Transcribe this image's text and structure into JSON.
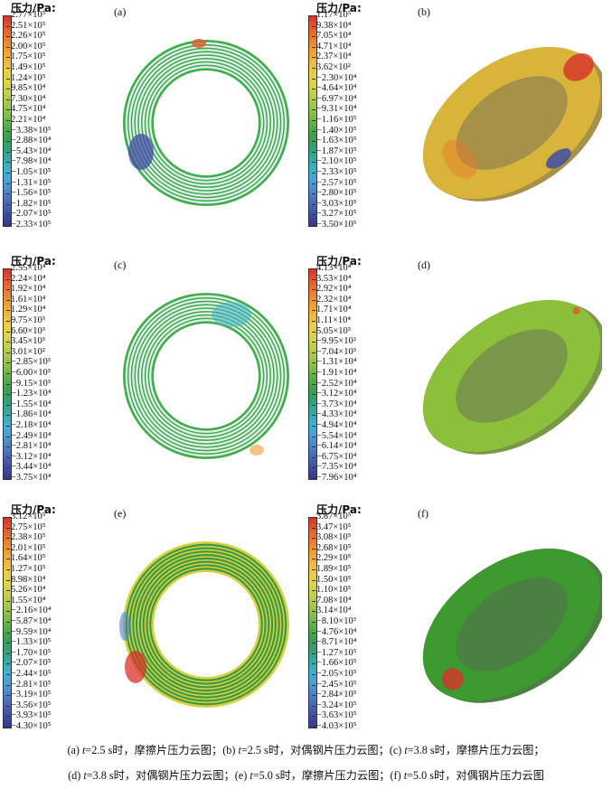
{
  "legend_title": "压力/Pa:",
  "panels": [
    {
      "label": "(a)",
      "view": "flat",
      "ring_color": "#3fae4b",
      "stripe": "#e6eef4",
      "ticks": [
        "2.77×10⁵",
        "2.51×10⁵",
        "2.26×10⁵",
        "2.00×10⁵",
        "1.75×10⁵",
        "1.49×10⁵",
        "1.24×10⁵",
        "9.85×10⁴",
        "7.30×10⁴",
        "4.75×10⁴",
        "2.21×10⁴",
        "−3.38×10³",
        "−2.88×10⁴",
        "−5.43×10⁴",
        "−7.98×10⁴",
        "−1.05×10⁵",
        "−1.31×10⁵",
        "−1.56×10⁵",
        "−1.82×10⁵",
        "−2.07×10⁵",
        "−2.33×10⁵"
      ]
    },
    {
      "label": "(b)",
      "view": "tilted",
      "ring_color": "#d8b43a",
      "stripe": "none",
      "ticks": [
        "1.17×10⁵",
        "9.38×10⁴",
        "7.05×10⁴",
        "4.71×10⁴",
        "2.37×10⁴",
        "3.62×10²",
        "−2.30×10⁴",
        "−4.64×10⁴",
        "−6.97×10⁴",
        "−9.31×10⁴",
        "−1.16×10⁵",
        "−1.40×10⁵",
        "−1.63×10⁵",
        "−1.87×10⁵",
        "−2.10×10⁵",
        "−2.33×10⁵",
        "−2.57×10⁵",
        "−2.80×10⁵",
        "−3.03×10⁵",
        "−3.27×10⁵",
        "−3.50×10⁵"
      ]
    },
    {
      "label": "(c)",
      "view": "flat",
      "ring_color": "#3fae4b",
      "stripe": "#e8eef0",
      "ticks": [
        "2.55×10⁴",
        "2.24×10⁴",
        "1.92×10⁴",
        "1.61×10⁴",
        "1.29×10⁴",
        "9.75×10³",
        "6.60×10³",
        "3.45×10³",
        "3.01×10²",
        "−2.85×10³",
        "−6.00×10³",
        "−9.15×10³",
        "−1.23×10⁴",
        "−1.55×10⁴",
        "−1.86×10⁴",
        "−2.18×10⁴",
        "−2.49×10⁴",
        "−2.81×10⁴",
        "−3.12×10⁴",
        "−3.44×10⁴",
        "−3.75×10⁴"
      ]
    },
    {
      "label": "(d)",
      "view": "tilted",
      "ring_color": "#8cbf3a",
      "stripe": "none",
      "ticks": [
        "4.13×10⁴",
        "3.53×10⁴",
        "2.92×10⁴",
        "2.32×10⁴",
        "1.71×10⁴",
        "1.11×10⁴",
        "5.05×10³",
        "−9.95×10²",
        "−7.04×10³",
        "−1.31×10⁴",
        "−1.91×10⁴",
        "−2.52×10⁴",
        "−3.12×10⁴",
        "−3.73×10⁴",
        "−4.33×10⁴",
        "−4.94×10⁴",
        "−5.54×10⁴",
        "−6.14×10⁴",
        "−6.75×10⁴",
        "−7.35×10⁴",
        "−7.96×10⁴"
      ]
    },
    {
      "label": "(e)",
      "view": "flat",
      "ring_color": "#d9d040",
      "stripe": "#3a9a46",
      "ticks": [
        "3.12×10⁵",
        "2.75×10⁵",
        "2.38×10⁵",
        "2.01×10⁵",
        "1.64×10⁵",
        "1.27×10⁵",
        "8.98×10⁴",
        "5.26×10⁴",
        "1.55×10⁴",
        "−2.16×10⁴",
        "−5.87×10⁴",
        "−9.59×10⁴",
        "−1.33×10⁵",
        "−1.70×10⁵",
        "−2.07×10⁵",
        "−2.44×10⁵",
        "−2.81×10⁵",
        "−3.19×10⁵",
        "−3.56×10⁵",
        "−3.93×10⁵",
        "−4.30×10⁵"
      ]
    },
    {
      "label": "(f)",
      "view": "tilted",
      "ring_color": "#3c9a2e",
      "stripe": "none",
      "ticks": [
        "3.87×10⁵",
        "3.47×10⁵",
        "3.08×10⁵",
        "2.68×10⁵",
        "2.29×10⁵",
        "1.89×10⁵",
        "1.50×10⁵",
        "1.10×10⁵",
        "7.08×10⁴",
        "3.14×10⁴",
        "−8.10×10³",
        "−4.76×10⁴",
        "−8.71×10⁴",
        "−1.27×10⁵",
        "−1.66×10⁵",
        "−2.05×10⁵",
        "−2.45×10⁵",
        "−2.84×10⁵",
        "−3.24×10⁵",
        "−3.63×10⁵",
        "−4.03×10⁵"
      ]
    }
  ],
  "caption": {
    "line1": [
      {
        "pre": "(a) ",
        "var": "t",
        "post": "=2.5 s时，摩擦片压力云图；"
      },
      {
        "pre": "(b) ",
        "var": "t",
        "post": "=2.5 s时，对偶钢片压力云图；"
      },
      {
        "pre": "(c) ",
        "var": "t",
        "post": "=3.8 s时，摩擦片压力云图；"
      }
    ],
    "line2": [
      {
        "pre": "(d) ",
        "var": "t",
        "post": "=3.8 s时，对偶钢片压力云图；"
      },
      {
        "pre": "(e) ",
        "var": "t",
        "post": "=5.0 s时，摩擦片压力云图；"
      },
      {
        "pre": "(f) ",
        "var": "t",
        "post": "=5.0 s时，对偶钢片压力云图"
      }
    ]
  },
  "colorbar_colors": [
    "#d9312b",
    "#e4582b",
    "#ec7a2e",
    "#f09a33",
    "#f2b43a",
    "#eccd42",
    "#dcd548",
    "#c2d04b",
    "#a3c84b",
    "#7fbd49",
    "#55ad48",
    "#3a9f52",
    "#34a07a",
    "#35a9a4",
    "#3fb2cd",
    "#4b9fd6",
    "#4d82c8",
    "#4766b6",
    "#3f4ca4",
    "#373593"
  ]
}
